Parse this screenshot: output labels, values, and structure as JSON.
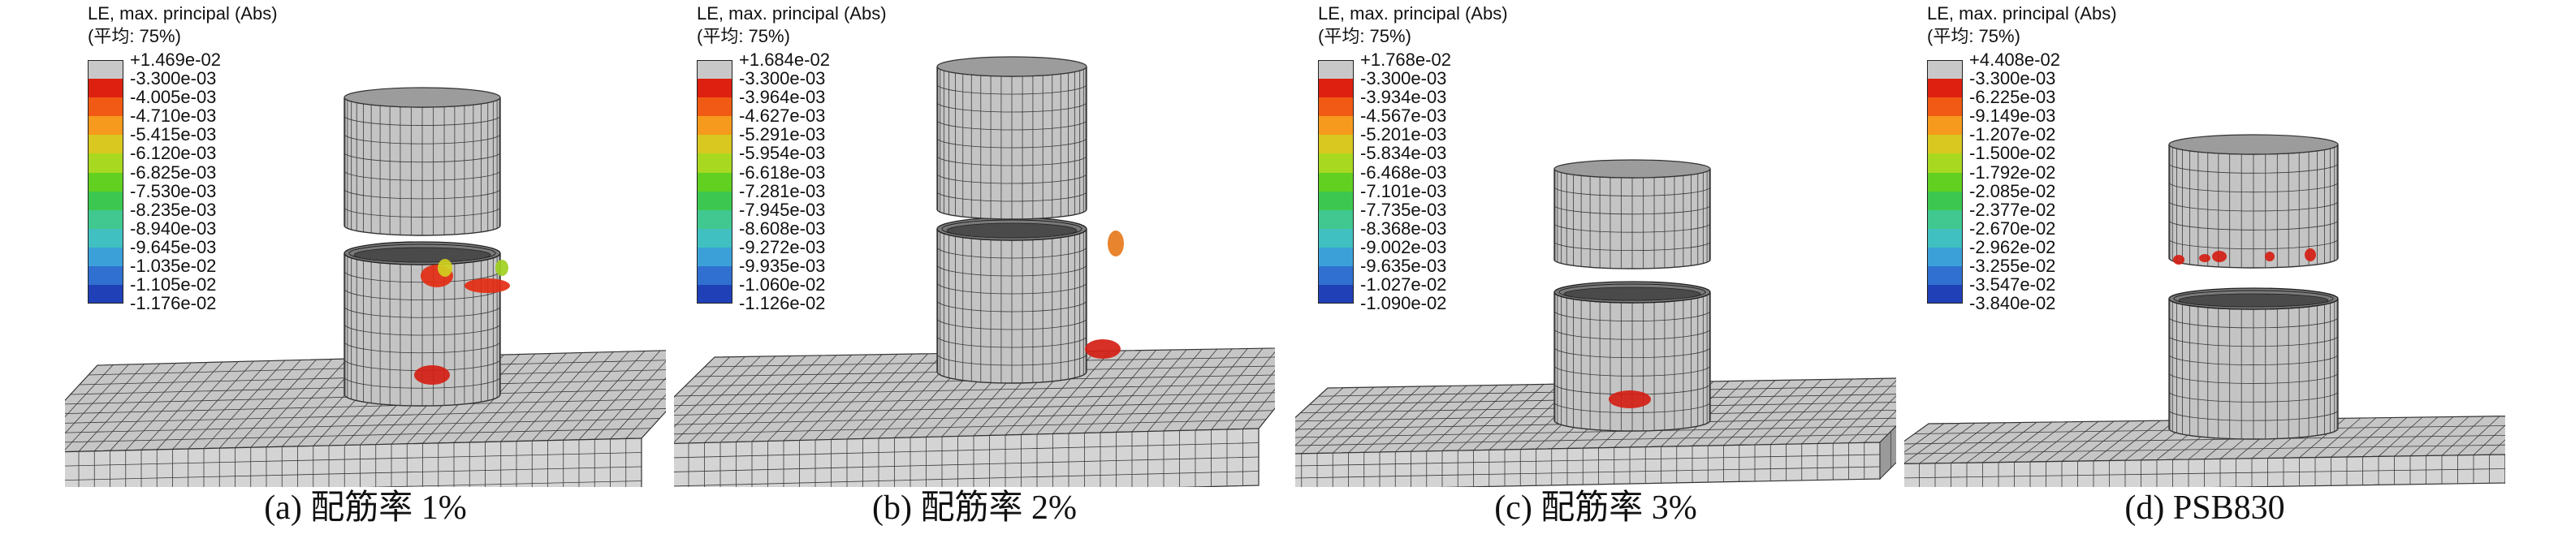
{
  "legend_title": "LE, max. principal (Abs)",
  "legend_subtitle": "(平均: 75%)",
  "legend_colors": [
    "#c8c8c8",
    "#dd2010",
    "#f05a14",
    "#f59a1c",
    "#d8c820",
    "#a8d820",
    "#62d020",
    "#3cc850",
    "#40c890",
    "#40c0c0",
    "#3ca0d8",
    "#3070d0",
    "#2040b8"
  ],
  "panels": [
    {
      "caption": "(a) 配筋率 1%",
      "labels": [
        "+1.469e-02",
        "-3.300e-03",
        "-4.005e-03",
        "-4.710e-03",
        "-5.415e-03",
        "-6.120e-03",
        "-6.825e-03",
        "-7.530e-03",
        "-8.235e-03",
        "-8.940e-03",
        "-9.645e-03",
        "-1.035e-02",
        "-1.105e-02",
        "-1.176e-02"
      ]
    },
    {
      "caption": "(b) 配筋率 2%",
      "labels": [
        "+1.684e-02",
        "-3.300e-03",
        "-3.964e-03",
        "-4.627e-03",
        "-5.291e-03",
        "-5.954e-03",
        "-6.618e-03",
        "-7.281e-03",
        "-7.945e-03",
        "-8.608e-03",
        "-9.272e-03",
        "-9.935e-03",
        "-1.060e-02",
        "-1.126e-02"
      ]
    },
    {
      "caption": "(c) 配筋率 3%",
      "labels": [
        "+1.768e-02",
        "-3.300e-03",
        "-3.934e-03",
        "-4.567e-03",
        "-5.201e-03",
        "-5.834e-03",
        "-6.468e-03",
        "-7.101e-03",
        "-7.735e-03",
        "-8.368e-03",
        "-9.002e-03",
        "-9.635e-03",
        "-1.027e-02",
        "-1.090e-02"
      ]
    },
    {
      "caption": "(d) PSB830",
      "labels": [
        "+4.408e-02",
        "-3.300e-03",
        "-6.225e-03",
        "-9.149e-03",
        "-1.207e-02",
        "-1.500e-02",
        "-1.792e-02",
        "-2.085e-02",
        "-2.377e-02",
        "-2.670e-02",
        "-2.962e-02",
        "-3.255e-02",
        "-3.547e-02",
        "-3.840e-02"
      ]
    }
  ]
}
